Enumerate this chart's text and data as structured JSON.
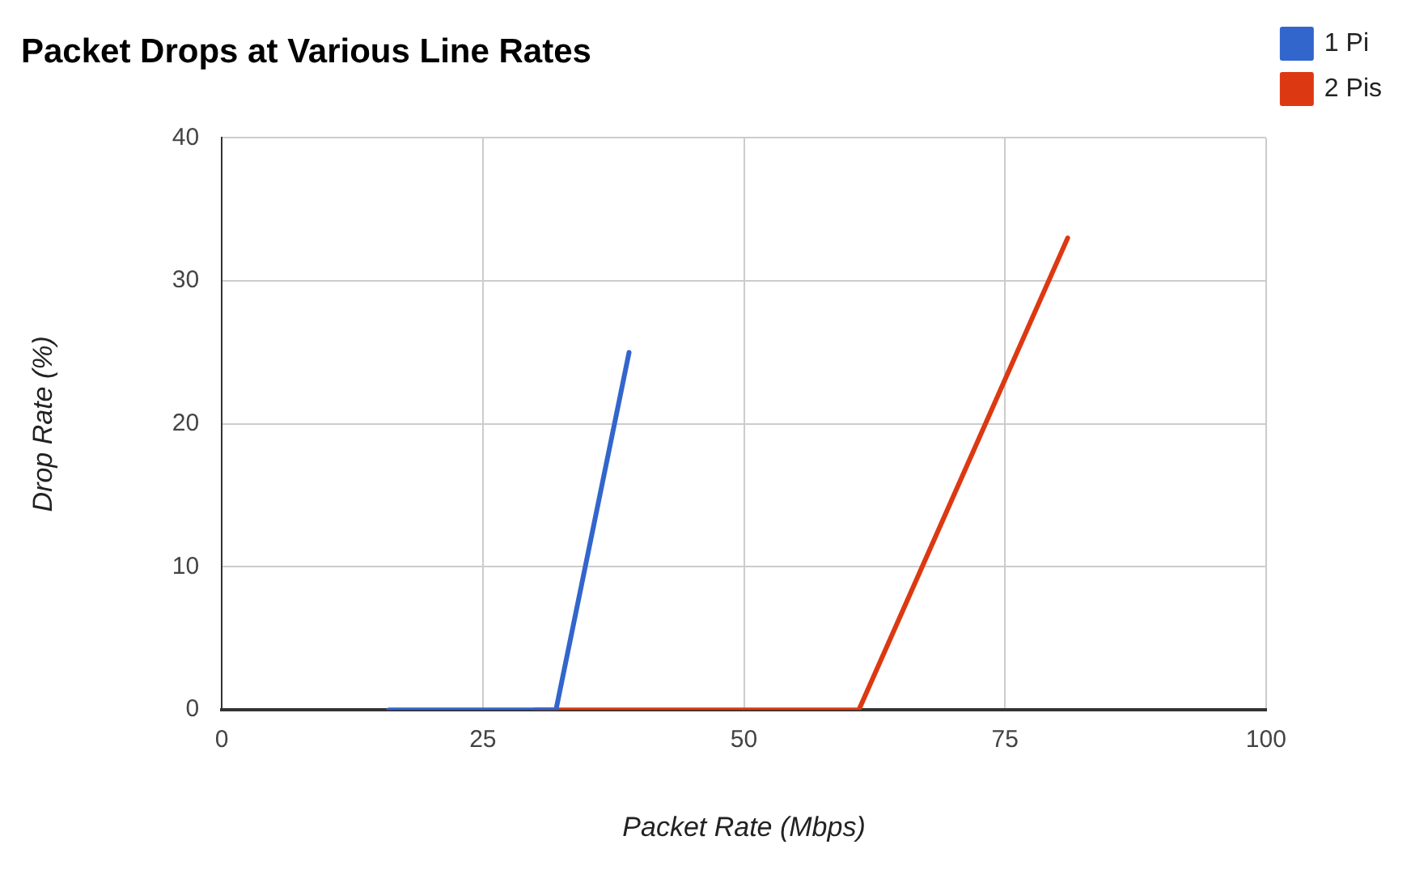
{
  "chart_data": {
    "type": "line",
    "title": "Packet Drops at Various Line Rates",
    "xlabel": "Packet Rate (Mbps)",
    "ylabel": "Drop Rate (%)",
    "series": [
      {
        "name": "1 Pi",
        "color": "#3366cc",
        "x": [
          16,
          30,
          32,
          39
        ],
        "values": [
          0,
          0,
          0,
          25
        ]
      },
      {
        "name": "2 Pis",
        "color": "#dc3912",
        "x": [
          30,
          61,
          81
        ],
        "values": [
          0,
          0,
          33
        ]
      }
    ],
    "xlim": [
      0,
      100
    ],
    "xticks": [
      0,
      25,
      50,
      75,
      100
    ],
    "ylim": [
      0,
      40
    ],
    "yticks": [
      0,
      10,
      20,
      30,
      40
    ],
    "grid": true,
    "legend": "top right",
    "marker": "none"
  }
}
